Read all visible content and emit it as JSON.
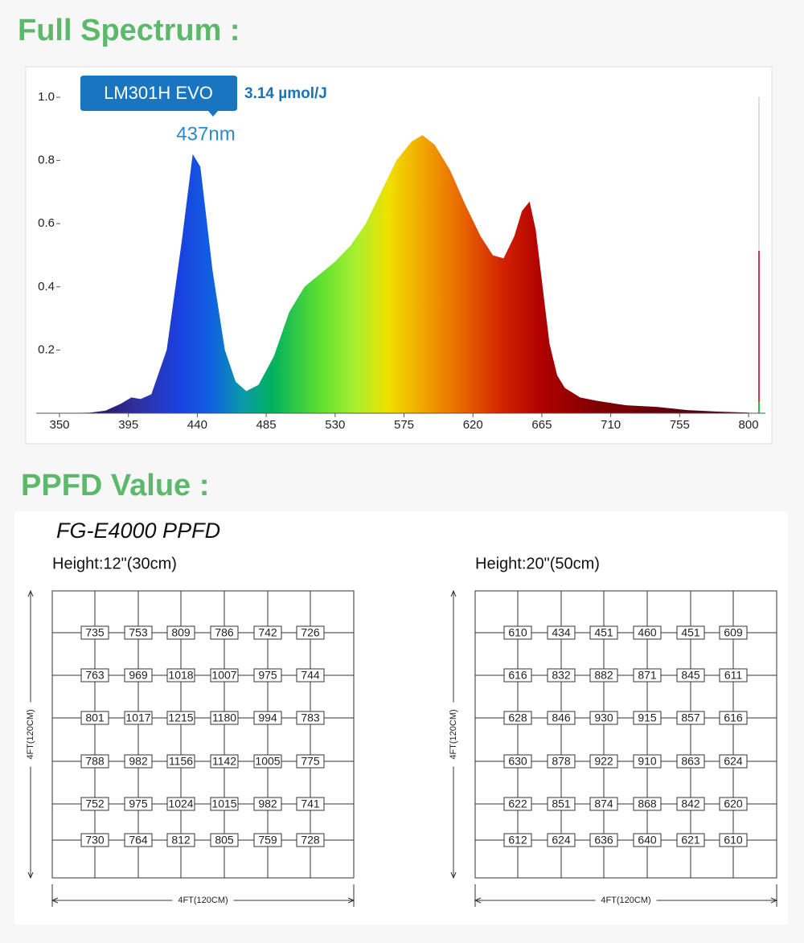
{
  "headings": [
    "Full Spectrum :",
    "PPFD Value :"
  ],
  "chart_data": {
    "type": "area",
    "annotations": {
      "badge": "LM301H EVO",
      "efficacy": "3.14 µmol/J",
      "peak": "437nm"
    },
    "x": [
      350,
      370,
      380,
      390,
      397,
      403,
      410,
      420,
      430,
      437,
      442,
      450,
      458,
      465,
      472,
      480,
      490,
      500,
      510,
      520,
      530,
      540,
      550,
      560,
      570,
      580,
      587,
      595,
      605,
      615,
      625,
      633,
      640,
      647,
      652,
      657,
      661,
      665,
      670,
      675,
      680,
      690,
      700,
      720,
      740,
      760,
      780,
      800
    ],
    "values": [
      0,
      0.002,
      0.008,
      0.03,
      0.05,
      0.045,
      0.06,
      0.2,
      0.55,
      0.82,
      0.78,
      0.45,
      0.2,
      0.1,
      0.07,
      0.09,
      0.18,
      0.32,
      0.4,
      0.44,
      0.48,
      0.53,
      0.6,
      0.7,
      0.8,
      0.86,
      0.88,
      0.85,
      0.77,
      0.66,
      0.56,
      0.5,
      0.49,
      0.56,
      0.64,
      0.67,
      0.58,
      0.42,
      0.22,
      0.12,
      0.08,
      0.05,
      0.04,
      0.025,
      0.02,
      0.01,
      0.005,
      0.002
    ],
    "xlim": [
      350,
      811
    ],
    "ylim": [
      0,
      1
    ],
    "xticks": [
      350,
      395,
      440,
      485,
      530,
      575,
      620,
      665,
      710,
      755,
      800
    ],
    "yticks": [
      0.2,
      0.4,
      0.6,
      0.8,
      {
        "value": 1,
        "label": "1.0"
      }
    ]
  },
  "ppfd": {
    "title": "FG-E4000 PPFD",
    "grids": [
      {
        "height": "Height:12\"(30cm)",
        "x_label": "4FT(120CM)",
        "y_label": "4FT(120CM)",
        "rows": [
          [
            735,
            753,
            809,
            786,
            742,
            726
          ],
          [
            763,
            969,
            1018,
            1007,
            975,
            744
          ],
          [
            801,
            1017,
            1215,
            1180,
            994,
            783
          ],
          [
            788,
            982,
            1156,
            1142,
            1005,
            775
          ],
          [
            752,
            975,
            1024,
            1015,
            982,
            741
          ],
          [
            730,
            764,
            812,
            805,
            759,
            728
          ]
        ]
      },
      {
        "height": "Height:20\"(50cm)",
        "x_label": "4FT(120CM)",
        "y_label": "4FT(120CM)",
        "rows": [
          [
            610,
            434,
            451,
            460,
            451,
            609
          ],
          [
            616,
            832,
            882,
            871,
            845,
            611
          ],
          [
            628,
            846,
            930,
            915,
            857,
            616
          ],
          [
            630,
            878,
            922,
            910,
            863,
            624
          ],
          [
            622,
            851,
            874,
            868,
            842,
            620
          ],
          [
            612,
            624,
            636,
            640,
            621,
            610
          ]
        ]
      }
    ]
  }
}
